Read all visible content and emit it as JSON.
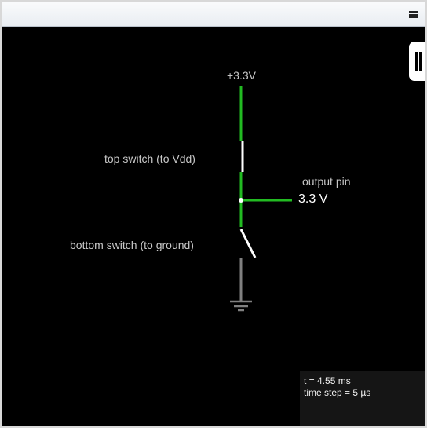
{
  "menu": {
    "icon": "hamburger-menu-icon"
  },
  "side_panel": {
    "icon": "pause-bars-icon"
  },
  "circuit": {
    "supply_label": "+3.3V",
    "top_switch_label": "top switch (to Vdd)",
    "output_label": "output pin",
    "output_value": "3.3 V",
    "bottom_switch_label": "bottom switch (to ground)",
    "ground_icon": "ground-symbol-icon",
    "wire_color_active": "#22bb22",
    "wire_color_inactive": "#808080",
    "switch_color": "#ffffff"
  },
  "status": {
    "time": "t = 4.55 ms",
    "time_step": "time step = 5 µs"
  }
}
